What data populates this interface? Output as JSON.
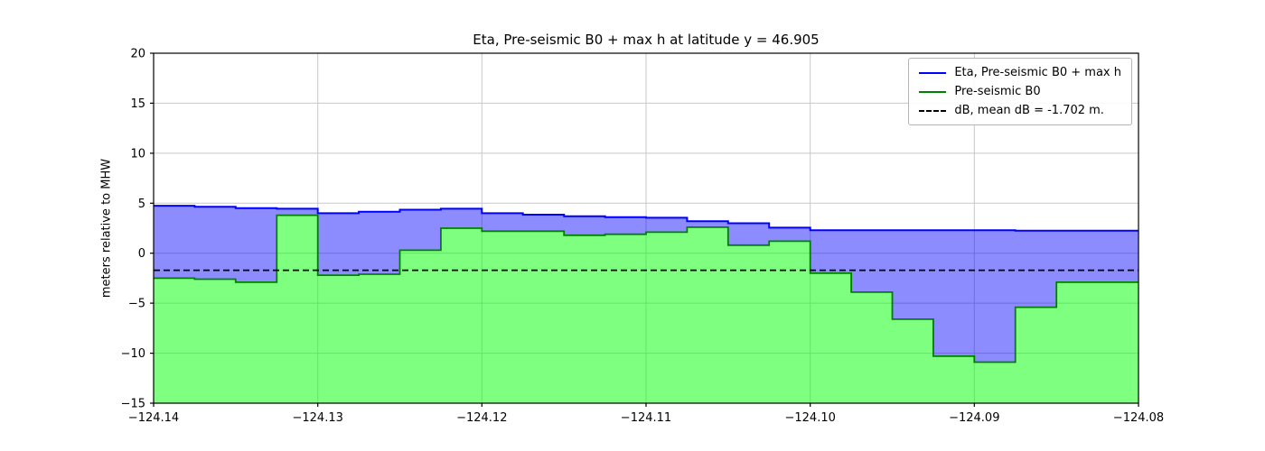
{
  "chart_data": {
    "type": "area",
    "title": "Eta, Pre-seismic B0 + max h at latitude y = 46.905",
    "ylabel": "meters relative to MHW",
    "xlabel": "",
    "xlim": [
      -124.14,
      -124.08
    ],
    "ylim": [
      -15,
      20
    ],
    "xticks": [
      -124.14,
      -124.13,
      -124.12,
      -124.11,
      -124.1,
      -124.09,
      -124.08
    ],
    "xtick_labels": [
      "−124.14",
      "−124.13",
      "−124.12",
      "−124.11",
      "−124.10",
      "−124.09",
      "−124.08"
    ],
    "yticks": [
      -15,
      -10,
      -5,
      0,
      5,
      10,
      15,
      20
    ],
    "ytick_labels": [
      "−15",
      "−10",
      "−5",
      "0",
      "5",
      "10",
      "15",
      "20"
    ],
    "grid": true,
    "grid_color": "#c8c8c8",
    "legend_position": "upper right",
    "x_edges": [
      -124.14,
      -124.1375,
      -124.135,
      -124.1325,
      -124.13,
      -124.1275,
      -124.125,
      -124.1225,
      -124.12,
      -124.1175,
      -124.115,
      -124.1125,
      -124.11,
      -124.1075,
      -124.105,
      -124.1025,
      -124.1,
      -124.0975,
      -124.095,
      -124.0925,
      -124.09,
      -124.0875,
      -124.085,
      -124.0825,
      -124.08
    ],
    "series": [
      {
        "name": "Eta, Pre-seismic B0 + max h",
        "color": "#0000ff",
        "fill": "rgba(0,0,255,0.45)",
        "values": [
          4.75,
          4.65,
          4.5,
          4.45,
          4.0,
          4.15,
          4.35,
          4.45,
          4.0,
          3.85,
          3.7,
          3.6,
          3.55,
          3.2,
          3.0,
          2.55,
          2.3,
          2.3,
          2.3,
          2.3,
          2.3,
          2.25,
          2.25,
          2.25
        ]
      },
      {
        "name": "Pre-seismic B0",
        "color": "#008000",
        "fill": "rgba(0,255,0,0.5)",
        "values": [
          -2.5,
          -2.6,
          -2.9,
          3.8,
          -2.2,
          -2.1,
          0.3,
          2.5,
          2.2,
          2.2,
          1.8,
          1.9,
          2.1,
          2.6,
          0.8,
          1.2,
          -2.0,
          -3.9,
          -6.6,
          -10.3,
          -10.9,
          -5.4,
          -2.9,
          -2.9
        ]
      }
    ],
    "dashed_line": {
      "label": "dB, mean dB = -1.702 m.",
      "value": -1.702,
      "color": "#000000"
    }
  }
}
